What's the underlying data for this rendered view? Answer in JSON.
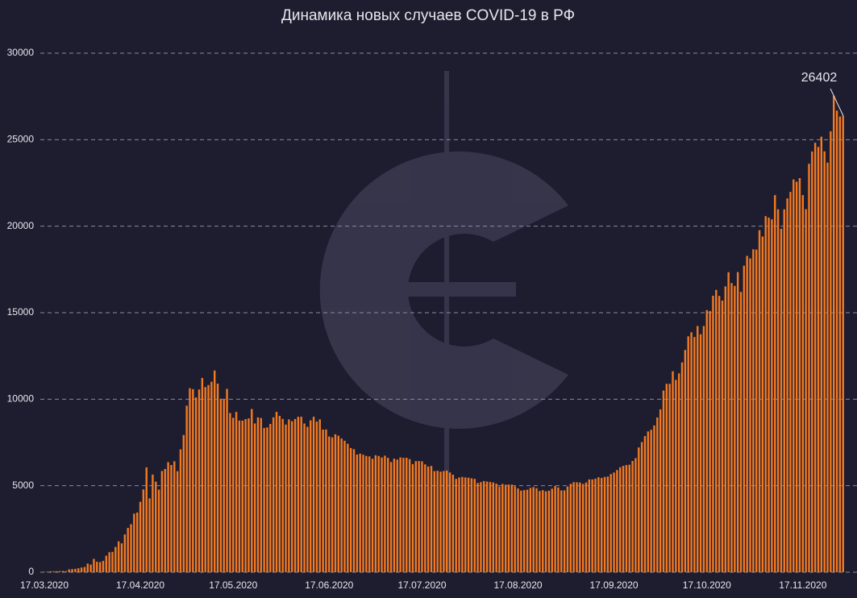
{
  "chart_data": {
    "type": "bar",
    "title": "Динамика новых случаев COVID-19 в РФ",
    "color": "#f27a21",
    "ylim": [
      0,
      30000
    ],
    "yticks": [
      0,
      5000,
      10000,
      15000,
      20000,
      25000,
      30000
    ],
    "grid": true,
    "label_last": true,
    "categories": [
      "17.03.2020",
      null,
      null,
      null,
      null,
      null,
      null,
      null,
      null,
      null,
      null,
      null,
      null,
      null,
      null,
      null,
      null,
      null,
      null,
      null,
      null,
      null,
      null,
      null,
      null,
      null,
      null,
      null,
      null,
      null,
      null,
      "17.04.2020",
      null,
      null,
      null,
      null,
      null,
      null,
      null,
      null,
      null,
      null,
      null,
      null,
      null,
      null,
      null,
      null,
      null,
      null,
      null,
      null,
      null,
      null,
      null,
      null,
      null,
      null,
      null,
      null,
      null,
      "17.05.2020",
      null,
      null,
      null,
      null,
      null,
      null,
      null,
      null,
      null,
      null,
      null,
      null,
      null,
      null,
      null,
      null,
      null,
      null,
      null,
      null,
      null,
      null,
      null,
      null,
      null,
      null,
      null,
      null,
      null,
      null,
      "17.06.2020",
      null,
      null,
      null,
      null,
      null,
      null,
      null,
      null,
      null,
      null,
      null,
      null,
      null,
      null,
      null,
      null,
      null,
      null,
      null,
      null,
      null,
      null,
      null,
      null,
      null,
      null,
      null,
      null,
      null,
      "17.07.2020",
      null,
      null,
      null,
      null,
      null,
      null,
      null,
      null,
      null,
      null,
      null,
      null,
      null,
      null,
      null,
      null,
      null,
      null,
      null,
      null,
      null,
      null,
      null,
      null,
      null,
      null,
      null,
      null,
      null,
      null,
      "17.08.2020",
      null,
      null,
      null,
      null,
      null,
      null,
      null,
      null,
      null,
      null,
      null,
      null,
      null,
      null,
      null,
      null,
      null,
      null,
      null,
      null,
      null,
      null,
      null,
      null,
      null,
      null,
      null,
      null,
      null,
      null,
      "17.09.2020",
      null,
      null,
      null,
      null,
      null,
      null,
      null,
      null,
      null,
      null,
      null,
      null,
      null,
      null,
      null,
      null,
      null,
      null,
      null,
      null,
      null,
      null,
      null,
      null,
      null,
      null,
      null,
      null,
      null,
      "17.10.2020",
      null,
      null,
      null,
      null,
      null,
      null,
      null,
      null,
      null,
      null,
      null,
      null,
      null,
      null,
      null,
      null,
      null,
      null,
      null,
      null,
      null,
      null,
      null,
      null,
      null,
      null,
      null,
      null,
      null,
      null,
      "17.11.2020",
      null,
      null,
      null,
      null,
      null,
      null,
      null,
      null,
      null,
      null,
      null,
      null,
      null
    ],
    "values": [
      21,
      33,
      52,
      53,
      54,
      61,
      71,
      57,
      163,
      182,
      196,
      228,
      270,
      302,
      501,
      440,
      771,
      601,
      582,
      658,
      954,
      1154,
      1175,
      1459,
      1786,
      1667,
      2186,
      2558,
      2774,
      3388,
      3448,
      4070,
      4785,
      6060,
      4268,
      5642,
      5236,
      4774,
      5849,
      5966,
      6361,
      6198,
      6411,
      5841,
      7099,
      7933,
      9623,
      10633,
      10581,
      10102,
      10559,
      11231,
      10699,
      10817,
      11012,
      11656,
      10899,
      10028,
      9974,
      10598,
      9200,
      8926,
      9263,
      8764,
      8764,
      8849,
      8894,
      9434,
      8599,
      8946,
      8915,
      8338,
      8371,
      8572,
      8952,
      9268,
      9035,
      8863,
      8536,
      8831,
      8726,
      8855,
      8984,
      8985,
      8595,
      8404,
      8779,
      8987,
      8706,
      8835,
      8246,
      8248,
      7843,
      7790,
      7972,
      7889,
      7728,
      7600,
      7425,
      7176,
      7113,
      6800,
      6852,
      6791,
      6719,
      6693,
      6556,
      6760,
      6718,
      6632,
      6736,
      6611,
      6368,
      6562,
      6509,
      6635,
      6611,
      6615,
      6537,
      6248,
      6422,
      6428,
      6406,
      6234,
      6109,
      6139,
      5842,
      5862,
      5811,
      5848,
      5871,
      5765,
      5635,
      5395,
      5475,
      5509,
      5482,
      5462,
      5427,
      5394,
      5159,
      5204,
      5267,
      5241,
      5212,
      5189,
      5118,
      4945,
      5102,
      5057,
      5065,
      5061,
      4969,
      4839,
      4718,
      4748,
      4767,
      4870,
      4921,
      4852,
      4696,
      4744,
      4676,
      4711,
      4829,
      4980,
      4897,
      4729,
      4729,
      4952,
      5110,
      5205,
      5195,
      5185,
      5099,
      5185,
      5363,
      5363,
      5406,
      5488,
      5449,
      5509,
      5529,
      5670,
      5762,
      5905,
      6065,
      6148,
      6196,
      6215,
      6431,
      6595,
      7212,
      7523,
      7867,
      8135,
      8232,
      8481,
      8945,
      9412,
      10499,
      10888,
      10888,
      11615,
      11115,
      11493,
      12126,
      12846,
      13634,
      13868,
      13592,
      14231,
      13754,
      14231,
      15150,
      15099,
      15982,
      16319,
      15971,
      15700,
      16521,
      17340,
      16710,
      16550,
      17347,
      16202,
      17717,
      18283,
      18140,
      18665,
      18648,
      19768,
      19404,
      20582,
      20498,
      20396,
      21798,
      20977,
      19851,
      20977,
      21608,
      21983,
      22702,
      22572,
      22778,
      21798,
      20985,
      23610,
      24318,
      24822,
      24581,
      25173,
      24326,
      23675,
      25487,
      27543,
      26683,
      26338,
      26402
    ]
  }
}
